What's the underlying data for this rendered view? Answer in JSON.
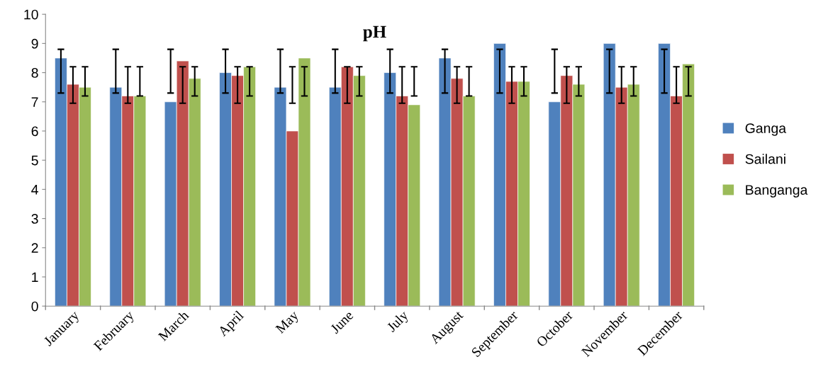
{
  "chart_data": {
    "type": "bar",
    "title": "pH",
    "categories": [
      "January",
      "February",
      "March",
      "April",
      "May",
      "June",
      "July",
      "August",
      "September",
      "October",
      "November",
      "December"
    ],
    "series": [
      {
        "name": "Ganga",
        "color": "#4f81bd",
        "values": [
          8.5,
          7.5,
          7,
          8,
          7.5,
          7.5,
          8,
          8.5,
          9,
          7,
          9,
          9
        ],
        "errors": [
          [
            7.3,
            8.8
          ],
          [
            7.3,
            8.8
          ],
          [
            7.3,
            8.8
          ],
          [
            7.3,
            8.8
          ],
          [
            7.3,
            8.8
          ],
          [
            7.3,
            8.8
          ],
          [
            7.3,
            8.8
          ],
          [
            7.3,
            8.8
          ],
          [
            7.3,
            8.8
          ],
          [
            7.3,
            8.8
          ],
          [
            7.3,
            8.8
          ],
          [
            7.3,
            8.8
          ]
        ]
      },
      {
        "name": "Sailani",
        "color": "#c0504d",
        "values": [
          7.6,
          7.2,
          8.4,
          7.9,
          6,
          8.2,
          7.2,
          7.8,
          7.7,
          7.9,
          7.5,
          7.2
        ],
        "errors": [
          [
            6.95,
            8.2
          ],
          [
            6.95,
            8.2
          ],
          [
            6.95,
            8.2
          ],
          [
            6.95,
            8.2
          ],
          [
            6.95,
            8.2
          ],
          [
            6.95,
            8.2
          ],
          [
            6.95,
            8.2
          ],
          [
            6.95,
            8.2
          ],
          [
            6.95,
            8.2
          ],
          [
            6.95,
            8.2
          ],
          [
            6.95,
            8.2
          ],
          [
            6.95,
            8.2
          ]
        ]
      },
      {
        "name": "Banganga",
        "color": "#9bbb59",
        "values": [
          7.5,
          7.2,
          7.8,
          8.2,
          8.5,
          7.9,
          6.9,
          7.2,
          7.7,
          7.6,
          7.6,
          8.3
        ],
        "errors": [
          [
            7.2,
            8.2
          ],
          [
            7.2,
            8.2
          ],
          [
            7.2,
            8.2
          ],
          [
            7.2,
            8.2
          ],
          [
            7.2,
            8.2
          ],
          [
            7.2,
            8.2
          ],
          [
            7.2,
            8.2
          ],
          [
            7.2,
            8.2
          ],
          [
            7.2,
            8.2
          ],
          [
            7.2,
            8.2
          ],
          [
            7.2,
            8.2
          ],
          [
            7.2,
            8.2
          ]
        ]
      }
    ],
    "ylim": [
      0,
      10
    ],
    "yticks": [
      0,
      1,
      2,
      3,
      4,
      5,
      6,
      7,
      8,
      9,
      10
    ],
    "legend": "right"
  }
}
